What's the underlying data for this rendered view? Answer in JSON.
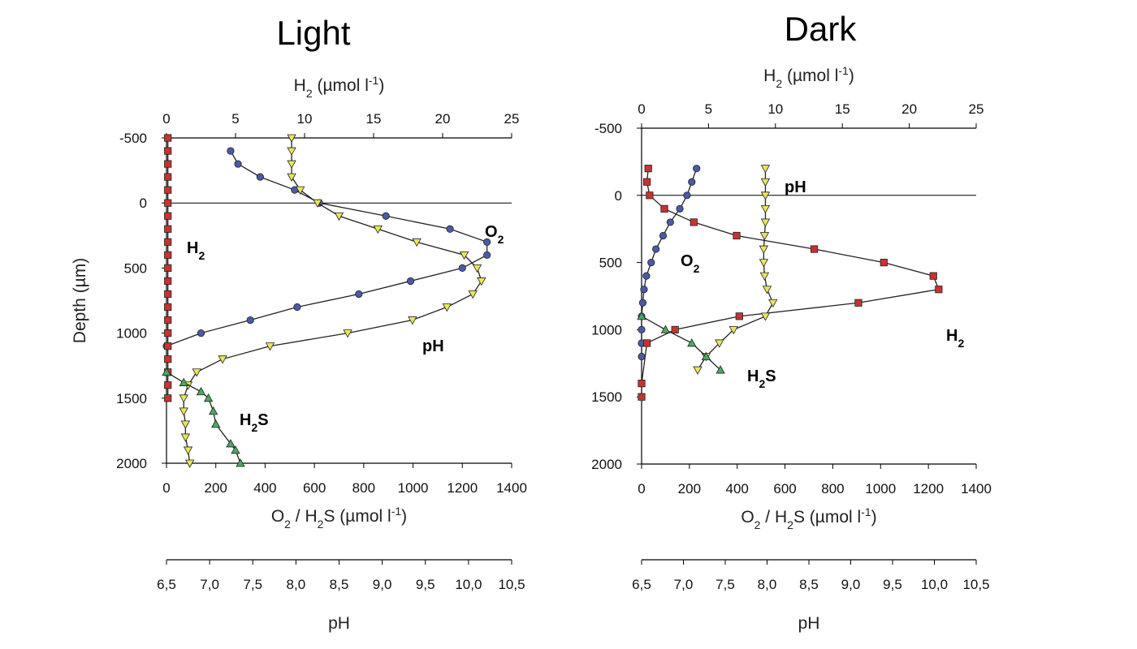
{
  "chart_data": [
    {
      "type": "line",
      "title": "Light",
      "xlabel": "O₂ / H₂S (µmol l⁻¹)",
      "x2label": "H₂ (µmol l⁻¹)",
      "x3label": "pH",
      "ylabel": "Depth (µm)",
      "ylim": [
        -500,
        2000
      ],
      "xlim": [
        0,
        1400
      ],
      "x2lim": [
        0,
        25
      ],
      "x3lim": [
        6.5,
        10.5
      ],
      "y_ticks": [
        "-500",
        "0",
        "500",
        "1000",
        "1500",
        "2000"
      ],
      "x_ticks": [
        "0",
        "200",
        "400",
        "600",
        "800",
        "1000",
        "1200",
        "1400"
      ],
      "x2_ticks": [
        "0",
        "5",
        "10",
        "15",
        "20",
        "25"
      ],
      "x3_ticks": [
        "6,5",
        "7,0",
        "7,5",
        "8,0",
        "8,5",
        "9,0",
        "9,5",
        "10,0",
        "10,5"
      ],
      "annotations": [
        {
          "series": "H2",
          "base": "H",
          "sub": "2",
          "tail": ""
        },
        {
          "series": "O2",
          "base": "O",
          "sub": "2",
          "tail": ""
        },
        {
          "series": "pH",
          "base": "pH",
          "sub": "",
          "tail": ""
        },
        {
          "series": "H2S",
          "base": "H",
          "sub": "2",
          "tail": "S"
        }
      ],
      "series": [
        {
          "name": "O2",
          "axis": "bottom",
          "marker": "circle",
          "color": "#4a5aa8",
          "points": [
            [
              260,
              -400
            ],
            [
              290,
              -300
            ],
            [
              380,
              -200
            ],
            [
              520,
              -100
            ],
            [
              620,
              0
            ],
            [
              890,
              100
            ],
            [
              1150,
              200
            ],
            [
              1300,
              300
            ],
            [
              1300,
              400
            ],
            [
              1200,
              500
            ],
            [
              990,
              600
            ],
            [
              780,
              700
            ],
            [
              530,
              800
            ],
            [
              340,
              900
            ],
            [
              140,
              1000
            ],
            [
              0,
              1100
            ]
          ]
        },
        {
          "name": "H2",
          "axis": "top",
          "marker": "square",
          "color": "#c83232",
          "points": [
            [
              0.1,
              -500
            ],
            [
              0.1,
              -400
            ],
            [
              0.1,
              -300
            ],
            [
              0.1,
              -200
            ],
            [
              0.1,
              -100
            ],
            [
              0.1,
              0
            ],
            [
              0.1,
              100
            ],
            [
              0.1,
              200
            ],
            [
              0.1,
              300
            ],
            [
              0.1,
              400
            ],
            [
              0.1,
              500
            ],
            [
              0.1,
              600
            ],
            [
              0.1,
              700
            ],
            [
              0.1,
              800
            ],
            [
              0.1,
              900
            ],
            [
              0.1,
              1000
            ],
            [
              0.1,
              1100
            ],
            [
              0.1,
              1200
            ],
            [
              0.1,
              1300
            ],
            [
              0.1,
              1400
            ],
            [
              0.1,
              1500
            ]
          ]
        },
        {
          "name": "pH",
          "axis": "ph",
          "marker": "triangle-down",
          "color": "#e8e65a",
          "points": [
            [
              7.95,
              -500
            ],
            [
              7.95,
              -400
            ],
            [
              7.95,
              -300
            ],
            [
              7.95,
              -200
            ],
            [
              8.05,
              -100
            ],
            [
              8.25,
              0
            ],
            [
              8.5,
              100
            ],
            [
              8.95,
              200
            ],
            [
              9.4,
              300
            ],
            [
              9.95,
              400
            ],
            [
              10.1,
              500
            ],
            [
              10.15,
              600
            ],
            [
              10.05,
              700
            ],
            [
              9.75,
              800
            ],
            [
              9.35,
              900
            ],
            [
              8.6,
              1000
            ],
            [
              7.7,
              1100
            ],
            [
              7.15,
              1200
            ],
            [
              6.85,
              1300
            ],
            [
              6.75,
              1400
            ],
            [
              6.7,
              1500
            ],
            [
              6.7,
              1600
            ],
            [
              6.72,
              1700
            ],
            [
              6.72,
              1800
            ],
            [
              6.75,
              1900
            ],
            [
              6.77,
              2000
            ]
          ]
        },
        {
          "name": "H2S",
          "axis": "bottom",
          "marker": "triangle-up",
          "color": "#4aa860",
          "points": [
            [
              0,
              1300
            ],
            [
              70,
              1380
            ],
            [
              140,
              1450
            ],
            [
              170,
              1500
            ],
            [
              190,
              1600
            ],
            [
              200,
              1700
            ],
            [
              260,
              1850
            ],
            [
              280,
              1900
            ],
            [
              300,
              2000
            ]
          ]
        }
      ]
    },
    {
      "type": "line",
      "title": "Dark",
      "xlabel": "O₂ / H₂S (µmol l⁻¹)",
      "x2label": "H₂ (µmol l⁻¹)",
      "x3label": "pH",
      "ylabel": "",
      "ylim": [
        -500,
        2000
      ],
      "xlim": [
        0,
        1400
      ],
      "x2lim": [
        0,
        25
      ],
      "x3lim": [
        6.5,
        10.5
      ],
      "y_ticks": [
        "-500",
        "0",
        "500",
        "1000",
        "1500",
        "2000"
      ],
      "x_ticks": [
        "0",
        "200",
        "400",
        "600",
        "800",
        "1000",
        "1200",
        "1400"
      ],
      "x2_ticks": [
        "0",
        "5",
        "10",
        "15",
        "20",
        "25"
      ],
      "x3_ticks": [
        "6,5",
        "7,0",
        "7,5",
        "8,0",
        "8,5",
        "9,0",
        "9,5",
        "10,0",
        "10,5"
      ],
      "annotations": [
        {
          "series": "pH",
          "base": "pH",
          "sub": "",
          "tail": ""
        },
        {
          "series": "O2",
          "base": "O",
          "sub": "2",
          "tail": ""
        },
        {
          "series": "H2",
          "base": "H",
          "sub": "2",
          "tail": ""
        },
        {
          "series": "H2S",
          "base": "H",
          "sub": "2",
          "tail": "S"
        }
      ],
      "series": [
        {
          "name": "O2",
          "axis": "bottom",
          "marker": "circle",
          "color": "#4a5aa8",
          "points": [
            [
              230,
              -200
            ],
            [
              210,
              -100
            ],
            [
              190,
              0
            ],
            [
              160,
              100
            ],
            [
              120,
              200
            ],
            [
              90,
              300
            ],
            [
              60,
              400
            ],
            [
              40,
              500
            ],
            [
              20,
              600
            ],
            [
              10,
              700
            ],
            [
              5,
              800
            ],
            [
              0,
              900
            ],
            [
              0,
              1000
            ],
            [
              0,
              1100
            ],
            [
              0,
              1200
            ]
          ]
        },
        {
          "name": "H2",
          "axis": "top",
          "marker": "square",
          "color": "#c83232",
          "points": [
            [
              0.5,
              -200
            ],
            [
              0.4,
              -100
            ],
            [
              0.6,
              0
            ],
            [
              1.7,
              100
            ],
            [
              3.9,
              200
            ],
            [
              7.1,
              300
            ],
            [
              12.9,
              400
            ],
            [
              18.1,
              500
            ],
            [
              21.8,
              600
            ],
            [
              22.2,
              700
            ],
            [
              16.2,
              800
            ],
            [
              7.3,
              900
            ],
            [
              2.5,
              1000
            ],
            [
              0.4,
              1100
            ],
            [
              0,
              1400
            ],
            [
              0,
              1500
            ]
          ]
        },
        {
          "name": "pH",
          "axis": "ph",
          "marker": "triangle-down",
          "color": "#e8e65a",
          "points": [
            [
              7.98,
              -200
            ],
            [
              7.98,
              -100
            ],
            [
              7.98,
              0
            ],
            [
              7.98,
              100
            ],
            [
              7.98,
              200
            ],
            [
              7.97,
              300
            ],
            [
              7.96,
              400
            ],
            [
              7.96,
              500
            ],
            [
              7.97,
              600
            ],
            [
              8.0,
              700
            ],
            [
              8.07,
              800
            ],
            [
              7.98,
              900
            ],
            [
              7.6,
              1000
            ],
            [
              7.43,
              1100
            ],
            [
              7.27,
              1200
            ],
            [
              7.17,
              1300
            ]
          ]
        },
        {
          "name": "H2S",
          "axis": "bottom",
          "marker": "triangle-up",
          "color": "#4aa860",
          "points": [
            [
              0,
              900
            ],
            [
              100,
              1000
            ],
            [
              210,
              1100
            ],
            [
              270,
              1200
            ],
            [
              330,
              1300
            ]
          ]
        }
      ]
    }
  ]
}
